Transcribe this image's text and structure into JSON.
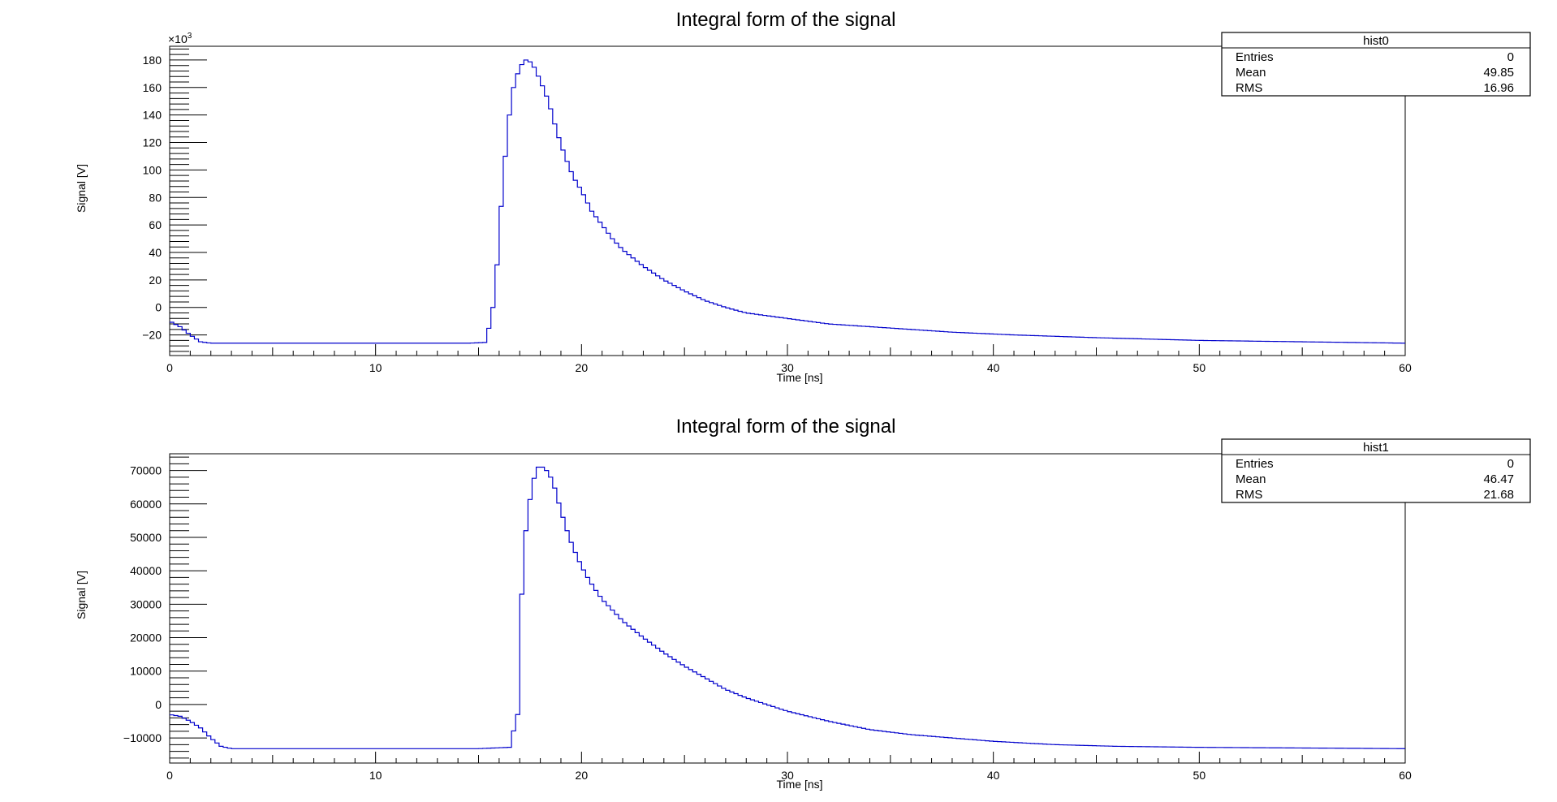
{
  "charts": [
    {
      "title": "Integral form of the signal",
      "xlabel": "Time [ns]",
      "ylabel": "Signal [V]",
      "exponent_label": "×10",
      "exponent": "3",
      "yticks": [
        "180",
        "160",
        "140",
        "120",
        "100",
        "80",
        "60",
        "40",
        "20",
        "0",
        "−20"
      ],
      "xticks": [
        "0",
        "10",
        "20",
        "30",
        "40",
        "50",
        "60"
      ],
      "stats": {
        "name": "hist0",
        "rows": [
          {
            "label": "Entries",
            "value": "0"
          },
          {
            "label": "Mean",
            "value": "49.85"
          },
          {
            "label": "RMS",
            "value": "16.96"
          }
        ]
      }
    },
    {
      "title": "Integral form of the signal",
      "xlabel": "Time [ns]",
      "ylabel": "Signal [V]",
      "yticks": [
        "70000",
        "60000",
        "50000",
        "40000",
        "30000",
        "20000",
        "10000",
        "0",
        "−10000"
      ],
      "xticks": [
        "0",
        "10",
        "20",
        "30",
        "40",
        "50",
        "60"
      ],
      "stats": {
        "name": "hist1",
        "rows": [
          {
            "label": "Entries",
            "value": "0"
          },
          {
            "label": "Mean",
            "value": "46.47"
          },
          {
            "label": "RMS",
            "value": "21.68"
          }
        ]
      }
    }
  ],
  "chart_data": [
    {
      "type": "step",
      "title": "Integral form of the signal",
      "xlabel": "Time [ns]",
      "ylabel": "Signal [V]",
      "y_multiplier": 1000,
      "xlim": [
        0,
        60
      ],
      "ylim": [
        -35,
        190
      ],
      "line_color": "#0000cc",
      "stats_box": {
        "name": "hist0",
        "entries": 0,
        "mean": 49.85,
        "rms": 16.96
      },
      "points": [
        [
          0,
          -10
        ],
        [
          0.5,
          -14
        ],
        [
          1,
          -20
        ],
        [
          1.5,
          -25
        ],
        [
          2,
          -26
        ],
        [
          5,
          -26
        ],
        [
          10,
          -26
        ],
        [
          14.5,
          -26
        ],
        [
          15.3,
          -25.5
        ],
        [
          15.6,
          -10
        ],
        [
          15.8,
          10
        ],
        [
          16,
          52
        ],
        [
          16.2,
          95
        ],
        [
          16.5,
          140
        ],
        [
          16.7,
          160
        ],
        [
          17,
          175
        ],
        [
          17.3,
          180
        ],
        [
          17.6,
          178
        ],
        [
          18,
          165
        ],
        [
          18.4,
          150
        ],
        [
          18.8,
          128
        ],
        [
          19.2,
          110
        ],
        [
          19.6,
          95
        ],
        [
          20,
          85
        ],
        [
          20.5,
          70
        ],
        [
          21,
          60
        ],
        [
          21.5,
          50
        ],
        [
          22,
          42
        ],
        [
          23,
          30
        ],
        [
          24,
          20
        ],
        [
          25,
          12
        ],
        [
          26,
          5
        ],
        [
          27,
          0
        ],
        [
          28,
          -4
        ],
        [
          30,
          -8
        ],
        [
          32,
          -12
        ],
        [
          35,
          -15
        ],
        [
          38,
          -18
        ],
        [
          41,
          -20
        ],
        [
          45,
          -22
        ],
        [
          50,
          -24
        ],
        [
          55,
          -25
        ],
        [
          60,
          -26
        ]
      ]
    },
    {
      "type": "step",
      "title": "Integral form of the signal",
      "xlabel": "Time [ns]",
      "ylabel": "Signal [V]",
      "xlim": [
        0,
        60
      ],
      "ylim": [
        -17500,
        75000
      ],
      "line_color": "#0000cc",
      "stats_box": {
        "name": "hist1",
        "entries": 0,
        "mean": 46.47,
        "rms": 21.68
      },
      "points": [
        [
          0,
          -3000
        ],
        [
          0.5,
          -3500
        ],
        [
          1,
          -5000
        ],
        [
          1.5,
          -7000
        ],
        [
          2,
          -10000
        ],
        [
          2.5,
          -12500
        ],
        [
          3,
          -13200
        ],
        [
          8,
          -13200
        ],
        [
          15,
          -13200
        ],
        [
          16.5,
          -12800
        ],
        [
          16.9,
          -3000
        ],
        [
          17.1,
          33000
        ],
        [
          17.3,
          52000
        ],
        [
          17.6,
          66000
        ],
        [
          17.9,
          71000
        ],
        [
          18.2,
          71000
        ],
        [
          18.6,
          67000
        ],
        [
          19,
          58000
        ],
        [
          19.4,
          50000
        ],
        [
          19.8,
          44000
        ],
        [
          20.2,
          39000
        ],
        [
          20.6,
          35000
        ],
        [
          21,
          31500
        ],
        [
          22,
          25000
        ],
        [
          23,
          20000
        ],
        [
          24,
          15500
        ],
        [
          25,
          11500
        ],
        [
          26,
          8000
        ],
        [
          27,
          4500
        ],
        [
          28,
          2000
        ],
        [
          29,
          0
        ],
        [
          30,
          -2000
        ],
        [
          32,
          -5000
        ],
        [
          34,
          -7500
        ],
        [
          36,
          -9000
        ],
        [
          38,
          -10000
        ],
        [
          40,
          -11000
        ],
        [
          43,
          -12000
        ],
        [
          46,
          -12500
        ],
        [
          50,
          -12800
        ],
        [
          55,
          -13000
        ],
        [
          60,
          -13200
        ]
      ]
    }
  ]
}
